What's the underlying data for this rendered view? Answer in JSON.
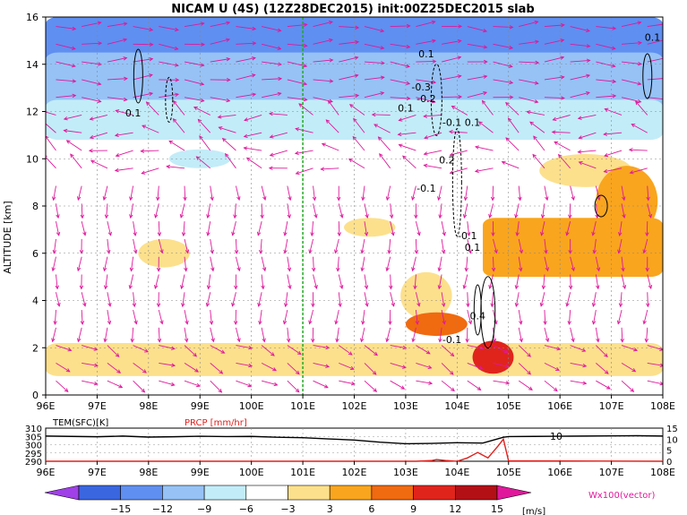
{
  "chart_data": [
    {
      "type": "heatmap",
      "title": "NICAM U (4S) (12Z28DEC2015) init:00Z25DEC2015 slab",
      "ylabel": "ALTITUDE [km]",
      "xlim": [
        96,
        108
      ],
      "ylim": [
        0,
        16
      ],
      "x_ticks": [
        "96E",
        "97E",
        "98E",
        "99E",
        "100E",
        "101E",
        "102E",
        "103E",
        "104E",
        "105E",
        "106E",
        "107E",
        "108E"
      ],
      "y_ticks": [
        "0",
        "2",
        "4",
        "6",
        "8",
        "10",
        "12",
        "14",
        "16"
      ],
      "grid": true,
      "marker_line_x": 101,
      "contour_labels": [
        {
          "text": "0.1",
          "x": 97.7,
          "y": 11.8
        },
        {
          "text": "-0.3",
          "x": 103.3,
          "y": 12.9
        },
        {
          "text": "-0.2",
          "x": 103.4,
          "y": 12.4
        },
        {
          "text": "0.1",
          "x": 103.0,
          "y": 12.0
        },
        {
          "text": "0.1",
          "x": 103.4,
          "y": 14.3
        },
        {
          "text": "-0.1",
          "x": 103.9,
          "y": 11.4
        },
        {
          "text": "0.1",
          "x": 104.3,
          "y": 11.4
        },
        {
          "text": "0.2",
          "x": 103.8,
          "y": 9.8
        },
        {
          "text": "-0.1",
          "x": 103.4,
          "y": 8.6
        },
        {
          "text": "-0.1",
          "x": 104.2,
          "y": 6.6
        },
        {
          "text": "0.1",
          "x": 104.3,
          "y": 6.1
        },
        {
          "text": "0.4",
          "x": 104.4,
          "y": 3.2
        },
        {
          "text": "-0.1",
          "x": 103.9,
          "y": 2.2
        },
        {
          "text": "0.1",
          "x": 107.8,
          "y": 15.0
        }
      ],
      "shading_regions": [
        {
          "level": -15,
          "x": [
            96.0,
            98.5
          ],
          "y": [
            15.0,
            16.0
          ]
        },
        {
          "level": -12,
          "x": [
            96.0,
            108.0
          ],
          "y": [
            13.5,
            16.0
          ]
        },
        {
          "level": -9,
          "x": [
            96.0,
            108.0
          ],
          "y": [
            12.0,
            14.5
          ]
        },
        {
          "level": -6,
          "x": [
            96.0,
            108.0
          ],
          "y": [
            10.8,
            12.5
          ]
        },
        {
          "level": 3,
          "x": [
            96.0,
            108.0
          ],
          "y": [
            0.8,
            2.2
          ]
        },
        {
          "level": 6,
          "x": [
            104.5,
            108.0
          ],
          "y": [
            5.0,
            7.5
          ]
        }
      ],
      "colorbar": {
        "levels": [
          -15,
          -12,
          -9,
          -6,
          -3,
          3,
          6,
          9,
          12,
          15
        ],
        "colors": [
          "#a040e8",
          "#3a66e0",
          "#5f8ff0",
          "#96c2f6",
          "#c2ecf8",
          "#ffffff",
          "#fce08c",
          "#f9a51e",
          "#f06a10",
          "#e0241c",
          "#b31016",
          "#e0189c"
        ],
        "unit": "[m/s]"
      },
      "vector_label": "Wx100(vector)"
    },
    {
      "type": "line",
      "xlim": [
        96,
        108
      ],
      "legend": [
        "TEM(SFC)[K]",
        "PRCP [mm/hr]"
      ],
      "left_axis": {
        "ticks": [
          "290",
          "295",
          "300",
          "305",
          "310"
        ],
        "ylim": [
          290,
          310
        ]
      },
      "right_axis": {
        "ticks": [
          "0",
          "5",
          "10",
          "15"
        ],
        "ylim": [
          0,
          15
        ]
      },
      "series": [
        {
          "name": "TEM(SFC)[K]",
          "color": "#000000",
          "x": [
            96,
            96.5,
            97,
            97.5,
            98,
            98.5,
            99,
            99.5,
            100,
            100.5,
            101,
            101.5,
            102,
            102.5,
            103,
            103.5,
            104,
            104.5,
            104.9,
            105,
            105.5,
            106,
            106.5,
            107,
            107.5,
            108
          ],
          "y": [
            305.2,
            305.0,
            304.8,
            305.2,
            304.6,
            304.8,
            305.1,
            304.9,
            305.0,
            304.5,
            304.2,
            303.5,
            302.8,
            301.5,
            300.6,
            300.8,
            301.2,
            301.0,
            304.5,
            304.9,
            305.0,
            305.1,
            305.2,
            305.3,
            305.4,
            305.2
          ]
        },
        {
          "name": "PRCP [mm/hr]",
          "color": "#e0201c",
          "x": [
            96,
            103.2,
            103.5,
            103.6,
            103.8,
            104.0,
            104.2,
            104.4,
            104.6,
            104.8,
            104.9,
            105.0,
            108
          ],
          "y": [
            0,
            0,
            0.3,
            0.8,
            0.3,
            0.0,
            1.5,
            4.0,
            1.5,
            7.0,
            10.0,
            0.2,
            0
          ]
        }
      ],
      "annotation": "10"
    }
  ]
}
